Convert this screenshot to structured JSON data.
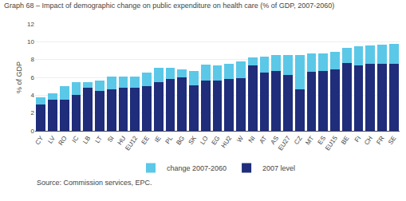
{
  "chart_data": {
    "type": "bar",
    "stacked": true,
    "title": "Graph 68 – Impact of demographic change on public expenditure on health care (% of GDP, 2007-2060)",
    "ylabel": "% of GDP",
    "annotations": [
      "Source: Commission services, EPC."
    ],
    "categories": [
      "CY",
      "LV",
      "RO",
      "IC",
      "LB",
      "LT",
      "SI",
      "HU",
      "EU12",
      "EE",
      "IE",
      "PL",
      "BG",
      "SK",
      "LO",
      "EG",
      "HU2",
      "W",
      "NI",
      "AT",
      "AS",
      "EU27",
      "CZ",
      "MT",
      "ES",
      "EU15",
      "BE",
      "FI",
      "CH",
      "FR",
      "SE"
    ],
    "series": [
      {
        "name": "2007 level",
        "color": "#1F2D7B",
        "values": [
          3.0,
          3.5,
          3.5,
          4.0,
          4.8,
          4.5,
          4.7,
          4.8,
          4.8,
          5.0,
          5.5,
          5.8,
          6.0,
          5.1,
          5.6,
          5.6,
          5.8,
          5.9,
          7.3,
          6.5,
          6.7,
          6.3,
          4.7,
          6.6,
          6.7,
          6.9,
          7.6,
          7.3,
          7.5,
          7.5,
          7.5
        ]
      },
      {
        "name": "change 2007-2060",
        "color": "#5BC8E8",
        "values": [
          0.8,
          0.7,
          1.5,
          1.5,
          0.7,
          1.1,
          1.4,
          1.3,
          1.3,
          1.5,
          1.6,
          1.3,
          0.9,
          1.6,
          1.8,
          1.7,
          1.7,
          1.9,
          0.9,
          1.8,
          1.8,
          2.2,
          3.8,
          2.1,
          2.0,
          2.0,
          1.7,
          2.2,
          2.1,
          2.2,
          2.3
        ]
      }
    ],
    "ylim": [
      0,
      12
    ],
    "yticks": [
      0,
      2,
      4,
      6,
      8,
      10,
      12
    ],
    "grid": true,
    "legend": "bottom"
  }
}
